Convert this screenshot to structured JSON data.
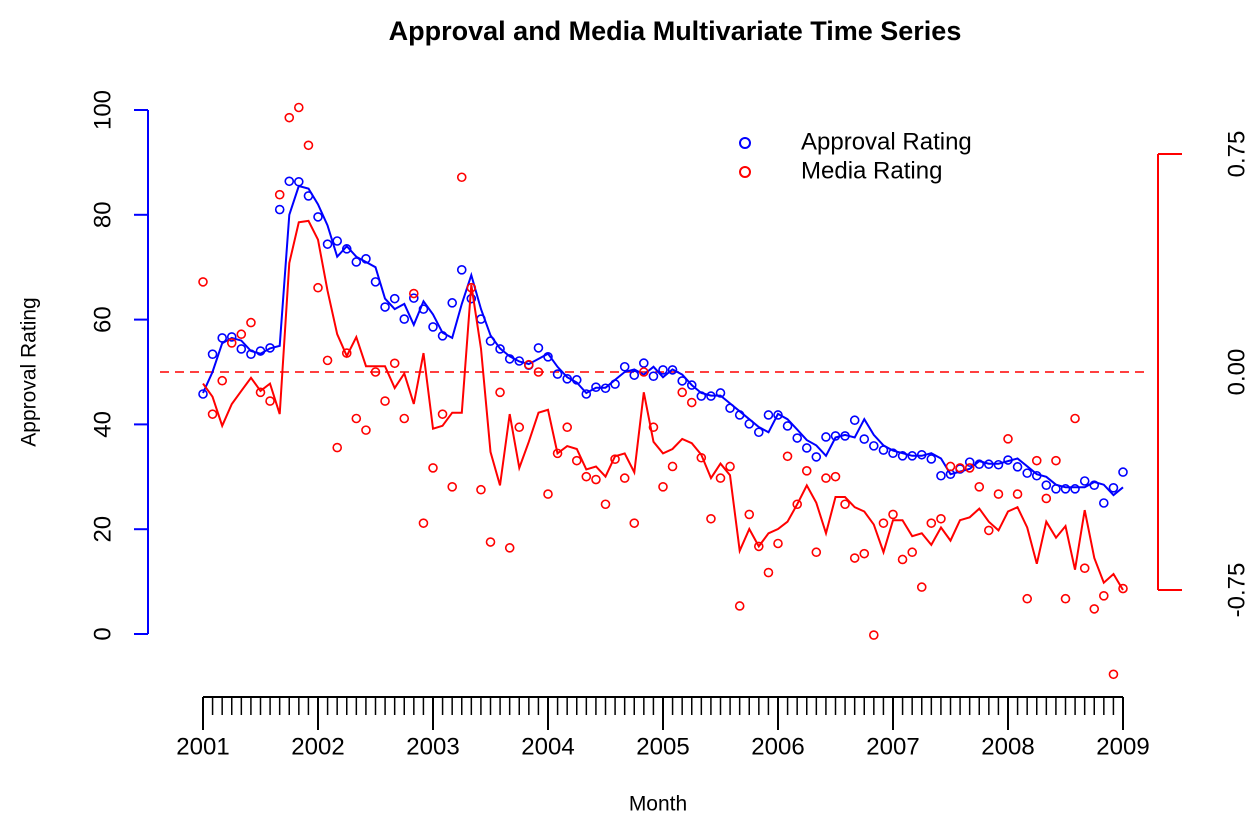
{
  "chart_data": {
    "type": "line",
    "title": "Approval and Media Multivariate Time Series",
    "x_label": "Month",
    "y_label": "Approval Rating",
    "legend": "topright",
    "xlim": [
      2001,
      2009
    ],
    "xticks": [
      2001,
      2002,
      2003,
      2004,
      2005,
      2006,
      2007,
      2008,
      2009
    ],
    "x_minor_ticks": 12,
    "ylim": [
      0,
      100
    ],
    "yticks": [
      0,
      20,
      40,
      60,
      80,
      100
    ],
    "y_color": "blue",
    "y2lim": [
      -0.75,
      0.75
    ],
    "y2ticks": [
      -0.75,
      {
        "value": 0,
        "label": "0.00"
      },
      0.75
    ],
    "y2_color": "red",
    "hline": {
      "axis": "y2",
      "value": 0,
      "color": "red",
      "dashed": true
    },
    "x": [
      2001,
      2001.083,
      2001.167,
      2001.25,
      2001.333,
      2001.417,
      2001.5,
      2001.583,
      2001.667,
      2001.75,
      2001.833,
      2001.917,
      2002,
      2002.083,
      2002.167,
      2002.25,
      2002.333,
      2002.417,
      2002.5,
      2002.583,
      2002.667,
      2002.75,
      2002.833,
      2002.917,
      2003,
      2003.083,
      2003.167,
      2003.25,
      2003.333,
      2003.417,
      2003.5,
      2003.583,
      2003.667,
      2003.75,
      2003.833,
      2003.917,
      2004,
      2004.083,
      2004.167,
      2004.25,
      2004.333,
      2004.417,
      2004.5,
      2004.583,
      2004.667,
      2004.75,
      2004.833,
      2004.917,
      2005,
      2005.083,
      2005.167,
      2005.25,
      2005.333,
      2005.417,
      2005.5,
      2005.583,
      2005.667,
      2005.75,
      2005.833,
      2005.917,
      2006,
      2006.083,
      2006.167,
      2006.25,
      2006.333,
      2006.417,
      2006.5,
      2006.583,
      2006.667,
      2006.75,
      2006.833,
      2006.917,
      2007,
      2007.083,
      2007.167,
      2007.25,
      2007.333,
      2007.417,
      2007.5,
      2007.583,
      2007.667,
      2007.75,
      2007.833,
      2007.917,
      2008,
      2008.083,
      2008.167,
      2008.25,
      2008.333,
      2008.417,
      2008.5,
      2008.583,
      2008.667,
      2008.75,
      2008.833,
      2008.917,
      2009
    ],
    "series": [
      {
        "name": "Approval Rating",
        "color": "blue",
        "axis": "y",
        "values": [
          45.8,
          53.4,
          56.5,
          56.7,
          54.4,
          53.4,
          54,
          54.6,
          81,
          86.4,
          86.3,
          83.6,
          79.6,
          74.4,
          75,
          73.5,
          71,
          71.6,
          67.2,
          62.4,
          64,
          60.1,
          64.1,
          62,
          58.6,
          56.9,
          63.2,
          69.5,
          64,
          60.1,
          55.9,
          54.4,
          52.5,
          52.1,
          51.3,
          54.6,
          52.9,
          49.6,
          48.7,
          48.5,
          45.8,
          47.1,
          46.9,
          47.7,
          51,
          49.4,
          51.7,
          49.2,
          50.4,
          50.4,
          48.3,
          47.5,
          45.4,
          45.4,
          46,
          43.1,
          41.8,
          40.1,
          38.5,
          41.8,
          41.8,
          39.7,
          37.4,
          35.5,
          33.8,
          37.6,
          37.8,
          37.8,
          40.8,
          37.2,
          35.9,
          35.1,
          34.5,
          34,
          34,
          34.2,
          33.4,
          30.2,
          30.5,
          31.5,
          32.8,
          32.4,
          32.4,
          32.3,
          33.2,
          31.9,
          30.7,
          30.2,
          28.4,
          27.7,
          27.7,
          27.7,
          29.2,
          28.4,
          25,
          27.9,
          30.9
        ],
        "fitted": [
          46,
          50,
          55.5,
          56.5,
          56,
          54,
          53.5,
          54.5,
          55,
          80,
          85.5,
          85,
          82,
          78,
          72,
          74,
          72,
          71,
          70,
          64,
          62,
          63,
          59,
          63.5,
          61,
          57.5,
          56.5,
          63,
          68.5,
          62,
          57,
          54.5,
          53,
          52,
          51.5,
          52.5,
          53.5,
          51,
          49,
          48,
          46,
          47,
          47,
          48.5,
          50,
          50.5,
          49.5,
          51,
          49,
          50.5,
          49.5,
          47.5,
          46,
          45.5,
          45.5,
          44,
          42.5,
          41,
          39.5,
          38.5,
          42,
          41,
          39,
          37,
          36,
          34,
          37.5,
          38,
          37.5,
          41,
          38,
          36,
          35,
          34.5,
          34,
          34,
          34.5,
          33.5,
          30.5,
          31,
          31.5,
          33,
          32.5,
          32.5,
          33,
          33.5,
          32,
          30.5,
          30,
          28.5,
          28,
          28,
          28,
          29,
          28.5,
          26.5,
          28
        ]
      },
      {
        "name": "Media Rating",
        "color": "red",
        "axis": "y2",
        "values": [
          0.31,
          -0.145,
          -0.03,
          0.1,
          0.13,
          0.17,
          -0.07,
          -0.1,
          0.61,
          0.875,
          0.91,
          0.78,
          0.29,
          0.04,
          -0.26,
          0.065,
          -0.16,
          -0.2,
          0,
          -0.1,
          0.03,
          -0.16,
          0.27,
          -0.52,
          -0.33,
          -0.145,
          -0.395,
          0.67,
          0.29,
          -0.405,
          -0.585,
          -0.07,
          -0.605,
          -0.19,
          0.025,
          0,
          -0.42,
          -0.28,
          -0.19,
          -0.305,
          -0.36,
          -0.37,
          -0.455,
          -0.3,
          -0.365,
          -0.52,
          0,
          -0.19,
          -0.395,
          -0.325,
          -0.07,
          -0.105,
          -0.295,
          -0.505,
          -0.365,
          -0.325,
          -0.805,
          -0.49,
          -0.6,
          -0.69,
          -0.59,
          -0.29,
          -0.455,
          -0.34,
          -0.62,
          -0.365,
          -0.36,
          -0.455,
          -0.64,
          -0.625,
          -0.905,
          -0.52,
          -0.49,
          -0.645,
          -0.62,
          -0.74,
          -0.52,
          -0.505,
          -0.325,
          -0.33,
          -0.33,
          -0.395,
          -0.545,
          -0.42,
          -0.23,
          -0.42,
          -0.78,
          -0.305,
          -0.435,
          -0.305,
          -0.78,
          -0.16,
          -0.675,
          -0.815,
          -0.77,
          -1.04,
          -0.745
        ],
        "fitted": [
          -0.04,
          -0.085,
          -0.185,
          -0.11,
          -0.065,
          -0.02,
          -0.065,
          -0.04,
          -0.145,
          0.375,
          0.515,
          0.52,
          0.455,
          0.28,
          0.13,
          0.055,
          0.12,
          0.02,
          0.02,
          0.02,
          -0.055,
          -0.005,
          -0.11,
          0.065,
          -0.195,
          -0.185,
          -0.14,
          -0.14,
          0.3,
          0.08,
          -0.275,
          -0.39,
          -0.145,
          -0.33,
          -0.24,
          -0.14,
          -0.13,
          -0.28,
          -0.255,
          -0.265,
          -0.335,
          -0.325,
          -0.36,
          -0.29,
          -0.28,
          -0.345,
          -0.07,
          -0.24,
          -0.28,
          -0.265,
          -0.23,
          -0.245,
          -0.285,
          -0.365,
          -0.315,
          -0.355,
          -0.615,
          -0.54,
          -0.6,
          -0.555,
          -0.54,
          -0.515,
          -0.455,
          -0.39,
          -0.45,
          -0.555,
          -0.43,
          -0.43,
          -0.465,
          -0.48,
          -0.525,
          -0.62,
          -0.51,
          -0.51,
          -0.565,
          -0.555,
          -0.595,
          -0.535,
          -0.58,
          -0.51,
          -0.5,
          -0.47,
          -0.515,
          -0.545,
          -0.48,
          -0.465,
          -0.535,
          -0.66,
          -0.515,
          -0.57,
          -0.53,
          -0.68,
          -0.475,
          -0.64,
          -0.725,
          -0.695,
          -0.75
        ]
      }
    ]
  }
}
